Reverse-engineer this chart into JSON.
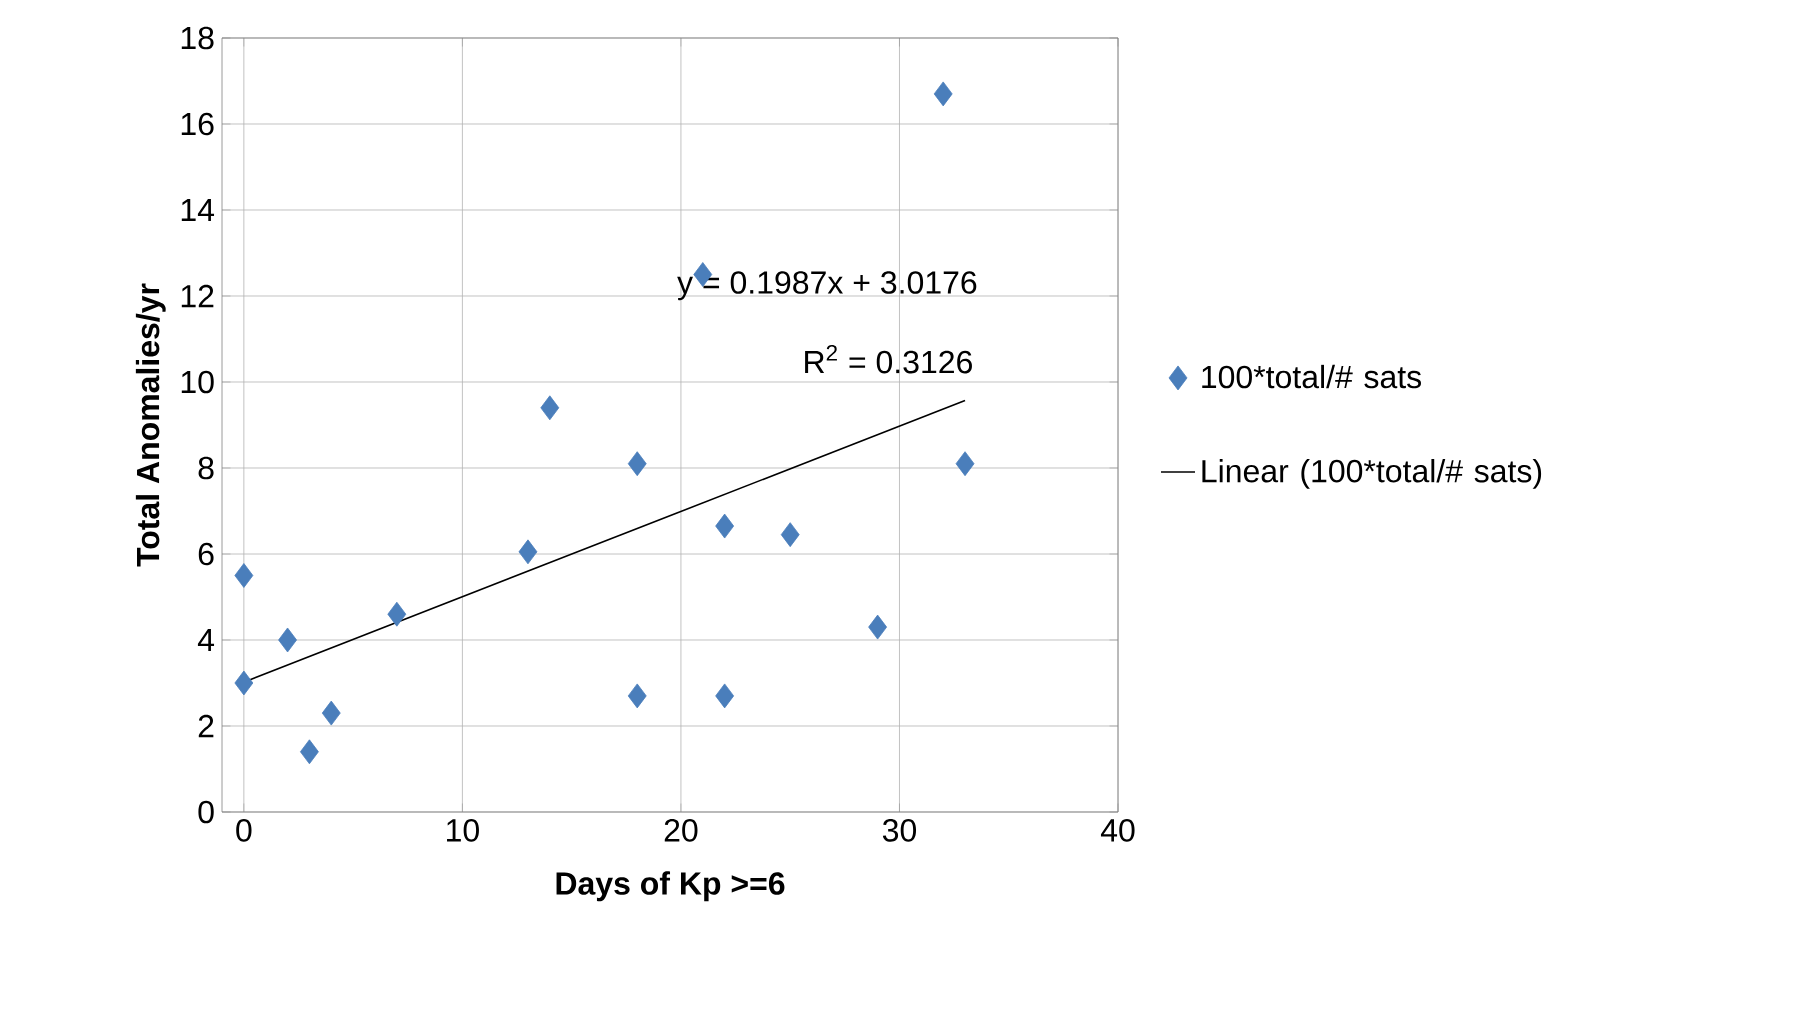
{
  "chart_data": {
    "type": "scatter",
    "xlabel": "Days of Kp >=6",
    "ylabel": "Total Anomalies/yr",
    "xlim": [
      -1,
      40
    ],
    "ylim": [
      0,
      18
    ],
    "xticks": [
      0,
      10,
      20,
      30,
      40
    ],
    "yticks": [
      0,
      2,
      4,
      6,
      8,
      10,
      12,
      14,
      16,
      18
    ],
    "grid": true,
    "legend": "right",
    "annotations": [
      "y = 0.1987x + 3.0176",
      "R$^{2}$ = 0.3126"
    ],
    "series": [
      {
        "name": "100*total/# sats",
        "marker": "diamond",
        "color": "#4a7ebb",
        "x": [
          0,
          0,
          2,
          3,
          4,
          7,
          13,
          14,
          18,
          18,
          21,
          22,
          22,
          25,
          29,
          32,
          33
        ],
        "values": [
          5.5,
          3.0,
          4.0,
          1.4,
          2.3,
          4.6,
          6.05,
          9.4,
          8.1,
          2.7,
          12.5,
          6.65,
          2.7,
          6.45,
          4.3,
          16.7,
          8.1
        ]
      },
      {
        "name": "Linear (100*total/# sats)",
        "type": "line",
        "line_style": "solid",
        "color": "#000000",
        "x": [
          0,
          33
        ],
        "values": [
          3.02,
          9.57
        ]
      }
    ]
  }
}
